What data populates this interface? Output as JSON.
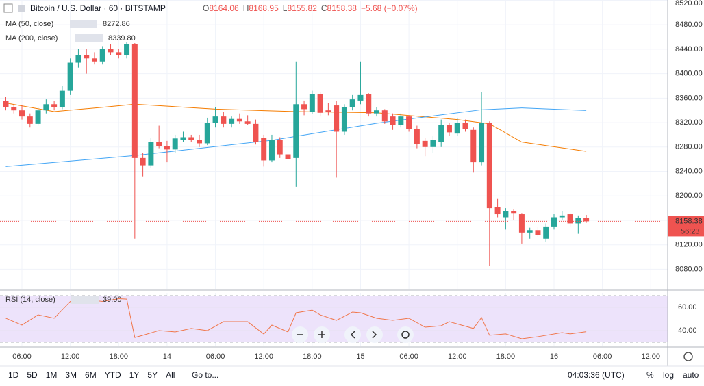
{
  "header": {
    "symbol": "Bitcoin / U.S. Dollar · 60 · BITSTAMP",
    "ohlc_labels": [
      "O",
      "H",
      "L",
      "C"
    ],
    "change": "−5.68 (−0.07%)"
  },
  "chart_data": [
    {
      "type": "candlestick",
      "up_color": "#26a69a",
      "down_color": "#ef5350",
      "grid": true,
      "x": [
        4,
        5,
        6,
        7,
        8,
        9,
        10,
        11,
        12,
        13,
        14,
        15,
        16,
        17,
        18,
        19,
        20,
        21,
        22,
        23,
        24,
        25,
        26,
        27,
        28,
        29,
        30,
        31,
        32,
        33,
        34,
        35,
        36,
        37,
        38,
        39,
        40,
        41,
        42,
        43,
        44,
        45,
        46,
        47,
        48,
        49,
        50,
        51,
        52,
        53,
        54,
        55,
        56,
        57,
        58,
        59,
        60,
        61,
        62,
        63,
        64,
        65,
        66,
        67,
        68,
        69,
        70,
        71,
        72,
        73,
        74,
        75,
        76
      ],
      "open": [
        8355,
        8345,
        8340,
        8330,
        8318,
        8340,
        8350,
        8345,
        8372,
        8418,
        8430,
        8425,
        8420,
        8440,
        8435,
        8430,
        8448,
        8262,
        8250,
        8288,
        8282,
        8276,
        8292,
        8296,
        8292,
        8286,
        8320,
        8330,
        8318,
        8326,
        8322,
        8318,
        8295,
        8258,
        8292,
        8268,
        8262,
        8350,
        8338,
        8366,
        8340,
        8348,
        8305,
        8345,
        8356,
        8366,
        8335,
        8340,
        8330,
        8316,
        8330,
        8310,
        8290,
        8280,
        8288,
        8316,
        8302,
        8320,
        8308,
        8255,
        8320,
        8182,
        8165,
        8175,
        8170,
        8140,
        8144,
        8130,
        8150,
        8165,
        8170,
        8155,
        8164.06
      ],
      "high": [
        8362,
        8350,
        8348,
        8335,
        8345,
        8358,
        8355,
        8380,
        8425,
        8440,
        8440,
        8435,
        8445,
        8448,
        8440,
        8452,
        8450,
        8270,
        8295,
        8315,
        8290,
        8300,
        8305,
        8300,
        8300,
        8328,
        8345,
        8338,
        8330,
        8335,
        8332,
        8325,
        8300,
        8300,
        8296,
        8275,
        8420,
        8356,
        8372,
        8370,
        8352,
        8355,
        8350,
        8365,
        8420,
        8368,
        8345,
        8342,
        8335,
        8335,
        8332,
        8315,
        8295,
        8298,
        8325,
        8320,
        8328,
        8325,
        8312,
        8370,
        8322,
        8195,
        8180,
        8178,
        8172,
        8148,
        8150,
        8155,
        8170,
        8175,
        8172,
        8168,
        8168.95
      ],
      "low": [
        8340,
        8335,
        8325,
        8312,
        8315,
        8335,
        8340,
        8342,
        8365,
        8410,
        8400,
        8415,
        8415,
        8430,
        8425,
        8425,
        8130,
        8232,
        8245,
        8278,
        8255,
        8270,
        8288,
        8288,
        8280,
        8283,
        8312,
        8312,
        8312,
        8318,
        8316,
        8284,
        8248,
        8255,
        8262,
        8255,
        8215,
        8332,
        8334,
        8330,
        8332,
        8230,
        8300,
        8340,
        8350,
        8330,
        8330,
        8318,
        8308,
        8312,
        8305,
        8278,
        8265,
        8270,
        8280,
        8298,
        8298,
        8305,
        8238,
        8250,
        8085,
        8165,
        8145,
        8160,
        8122,
        8130,
        8132,
        8125,
        8145,
        8160,
        8150,
        8138,
        8155.82
      ],
      "close": [
        8345,
        8340,
        8330,
        8318,
        8340,
        8350,
        8345,
        8372,
        8418,
        8430,
        8425,
        8420,
        8440,
        8435,
        8430,
        8448,
        8262,
        8250,
        8288,
        8282,
        8276,
        8294,
        8296,
        8292,
        8286,
        8320,
        8330,
        8318,
        8326,
        8322,
        8318,
        8288,
        8258,
        8292,
        8268,
        8260,
        8350,
        8342,
        8366,
        8336,
        8338,
        8305,
        8345,
        8358,
        8365,
        8335,
        8340,
        8322,
        8316,
        8330,
        8310,
        8285,
        8280,
        8292,
        8316,
        8304,
        8320,
        8310,
        8255,
        8320,
        8180,
        8170,
        8175,
        8172,
        8140,
        8144,
        8136,
        8150,
        8165,
        8168,
        8155,
        8164,
        8158.38
      ],
      "xlim": [
        3.28,
        86.1
      ],
      "xticks": [
        {
          "value": 6,
          "label": "06:00"
        },
        {
          "value": 12,
          "label": "12:00"
        },
        {
          "value": 18,
          "label": "18:00"
        },
        {
          "value": 24,
          "label": "14"
        },
        {
          "value": 30,
          "label": "06:00"
        },
        {
          "value": 36,
          "label": "12:00"
        },
        {
          "value": 42,
          "label": "18:00"
        },
        {
          "value": 48,
          "label": "15"
        },
        {
          "value": 54,
          "label": "06:00"
        },
        {
          "value": 60,
          "label": "12:00"
        },
        {
          "value": 66,
          "label": "18:00"
        },
        {
          "value": 72,
          "label": "16"
        },
        {
          "value": 78,
          "label": "06:00"
        },
        {
          "value": 84,
          "label": "12:00"
        }
      ],
      "ylim": [
        8048,
        8520.5
      ],
      "yticks": [
        {
          "value": 8520,
          "label": "8520.00"
        },
        {
          "value": 8480,
          "label": "8480.00"
        },
        {
          "value": 8440,
          "label": "8440.00"
        },
        {
          "value": 8400,
          "label": "8400.00"
        },
        {
          "value": 8360,
          "label": "8360.00"
        },
        {
          "value": 8320,
          "label": "8320.00"
        },
        {
          "value": 8280,
          "label": "8280.00"
        },
        {
          "value": 8240,
          "label": "8240.00"
        },
        {
          "value": 8200,
          "label": "8200.00"
        },
        {
          "value": 8160,
          "label": "8160.00"
        },
        {
          "value": 8120,
          "label": "8120.00"
        },
        {
          "value": 8080,
          "label": "8080.00"
        }
      ],
      "countdown": "56:23",
      "lines": [
        {
          "name": "MA (50, close)",
          "color": "#f57c00",
          "legend_value": "8272.86",
          "x": [
            4,
            10,
            16,
            20,
            30,
            40,
            50,
            60,
            64,
            68,
            76
          ],
          "values": [
            8352,
            8338,
            8345,
            8350,
            8342,
            8338,
            8336,
            8325,
            8318,
            8288,
            8272.86
          ]
        },
        {
          "name": "MA (200, close)",
          "color": "#42a5f5",
          "legend_value": "8339.80",
          "x": [
            4,
            20,
            37,
            50,
            63,
            68,
            76
          ],
          "values": [
            8248,
            8266,
            8291,
            8319,
            8341,
            8344,
            8339.8
          ]
        }
      ]
    },
    {
      "type": "line",
      "name": "RSI (14, close)",
      "legend_value": "39.00",
      "color": "#f0764a",
      "band": [
        30,
        70
      ],
      "band_color": "#ede3fb",
      "xlim": [
        3.28,
        86.1
      ],
      "ylim": [
        27,
        72.4
      ],
      "yticks": [
        {
          "value": 60,
          "label": "60.00"
        },
        {
          "value": 40,
          "label": "40.00"
        }
      ],
      "x": [
        4,
        6,
        8,
        10,
        12,
        13,
        16,
        18,
        19,
        20,
        21,
        23,
        25,
        27,
        29,
        31,
        34,
        36,
        37,
        39,
        40,
        42,
        43,
        45,
        47,
        48,
        50,
        52,
        54,
        56,
        58,
        59,
        62,
        63,
        64,
        66,
        68,
        70,
        73,
        74,
        76
      ],
      "values": [
        50.6,
        44.7,
        53.5,
        50.6,
        65,
        67.4,
        65,
        67.4,
        67,
        34,
        35.9,
        40,
        38.8,
        41.8,
        40,
        47.6,
        47.6,
        37,
        44.7,
        38.8,
        55.3,
        57.6,
        53.5,
        48.8,
        55.9,
        55.3,
        50.6,
        48.8,
        50.6,
        42.9,
        44.1,
        47.6,
        41.8,
        51.2,
        35.9,
        37.1,
        32.9,
        34.7,
        38.2,
        37.1,
        39
      ]
    }
  ],
  "toolbar": {
    "ranges": [
      "1D",
      "5D",
      "1M",
      "3M",
      "6M",
      "YTD",
      "1Y",
      "5Y",
      "All"
    ],
    "goto": "Go to...",
    "clock": "04:03:36 (UTC)",
    "options": [
      "%",
      "log",
      "auto"
    ]
  }
}
